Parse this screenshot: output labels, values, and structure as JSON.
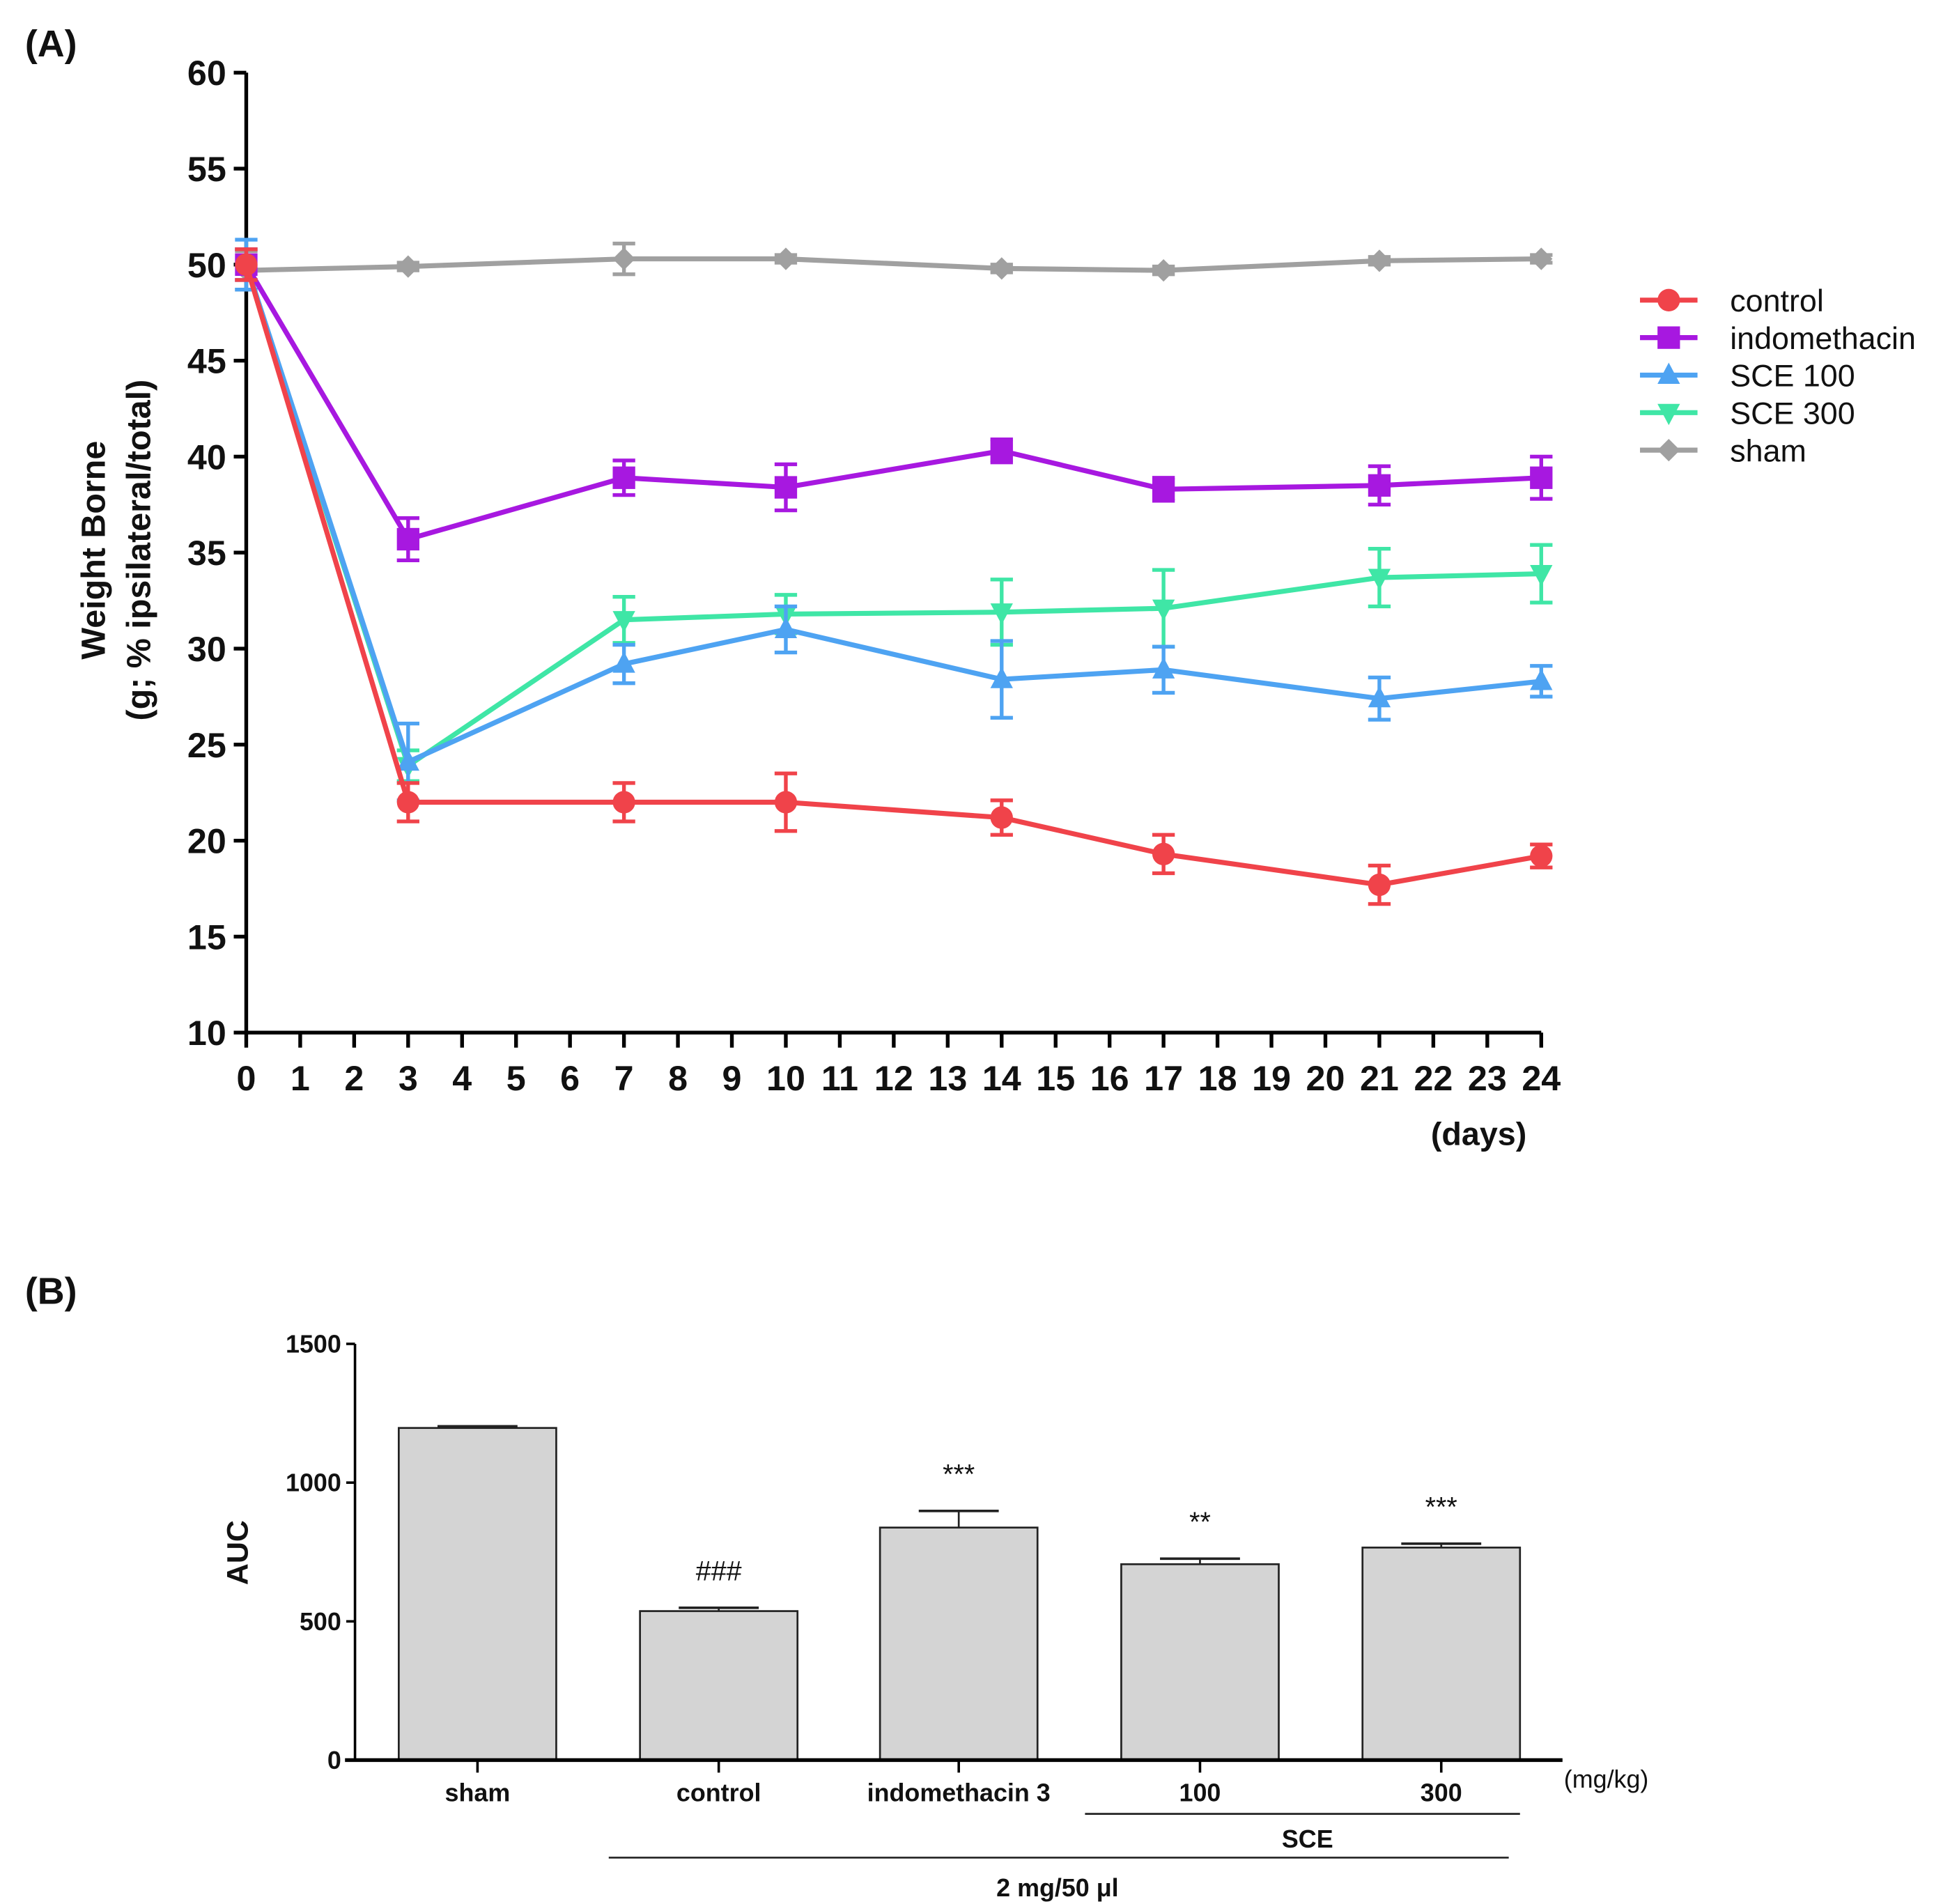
{
  "chart_data": [
    {
      "panel_label": "(A)",
      "type": "line",
      "title": "",
      "xlabel": "(days)",
      "ylabel_line1": "Weight Borne",
      "ylabel_line2": "(g; % ipsilateral/total)",
      "xlim": [
        0,
        24
      ],
      "ylim": [
        10,
        60
      ],
      "x_ticks": [
        0,
        1,
        2,
        3,
        4,
        5,
        6,
        7,
        8,
        9,
        10,
        11,
        12,
        13,
        14,
        15,
        16,
        17,
        18,
        19,
        20,
        21,
        22,
        23,
        24
      ],
      "y_ticks": [
        10,
        15,
        20,
        25,
        30,
        35,
        40,
        45,
        50,
        55,
        60
      ],
      "grid": false,
      "legend_position": "right",
      "x": [
        0,
        3,
        7,
        10,
        14,
        17,
        21,
        24
      ],
      "series": [
        {
          "name": "control",
          "color": "#f0434a",
          "marker": "circle",
          "values": [
            50.0,
            22.0,
            22.0,
            22.0,
            21.2,
            19.3,
            17.7,
            19.2
          ],
          "errors": [
            0.8,
            1.0,
            1.0,
            1.5,
            0.9,
            1.0,
            1.0,
            0.6
          ]
        },
        {
          "name": "indomethacin",
          "color": "#a718e0",
          "marker": "square",
          "values": [
            50.0,
            35.7,
            38.9,
            38.4,
            40.3,
            38.3,
            38.5,
            38.9
          ],
          "errors": [
            0.8,
            1.1,
            0.9,
            1.2,
            0.6,
            0.6,
            1.0,
            1.1
          ]
        },
        {
          "name": "SCE 100",
          "color": "#4ea3f2",
          "marker": "triangle-up",
          "values": [
            50.0,
            24.1,
            29.2,
            31.0,
            28.4,
            28.9,
            27.4,
            28.3
          ],
          "errors": [
            1.3,
            2.0,
            1.0,
            1.2,
            2.0,
            1.2,
            1.1,
            0.8
          ]
        },
        {
          "name": "SCE 300",
          "color": "#3fe6a6",
          "marker": "triangle-down",
          "values": [
            50.0,
            23.9,
            31.5,
            31.8,
            31.9,
            32.1,
            33.7,
            33.9
          ],
          "errors": [
            0.8,
            0.8,
            1.2,
            1.0,
            1.7,
            2.0,
            1.5,
            1.5
          ]
        },
        {
          "name": "sham",
          "color": "#a0a0a0",
          "marker": "diamond",
          "values": [
            49.7,
            49.9,
            50.3,
            50.3,
            49.8,
            49.7,
            50.2,
            50.3
          ],
          "errors": [
            1.0,
            0.2,
            0.8,
            0.2,
            0.2,
            0.2,
            0.2,
            0.2
          ]
        }
      ]
    },
    {
      "panel_label": "(B)",
      "type": "bar",
      "ylabel": "AUC",
      "ylim": [
        0,
        1500
      ],
      "y_ticks": [
        0,
        500,
        1000,
        1500
      ],
      "unit_label": "(mg/kg)",
      "categories": [
        "sham",
        "control",
        "indomethacin 3",
        "100",
        "300"
      ],
      "values": [
        1197,
        537,
        838,
        706,
        766
      ],
      "errors": [
        6,
        12,
        60,
        20,
        14
      ],
      "annotations": [
        "",
        "###",
        "***",
        "**",
        "***"
      ],
      "bar_color": "#d4d4d4",
      "group_labels": {
        "sce": "SCE",
        "dose": "2 mg/50 μl"
      }
    }
  ]
}
